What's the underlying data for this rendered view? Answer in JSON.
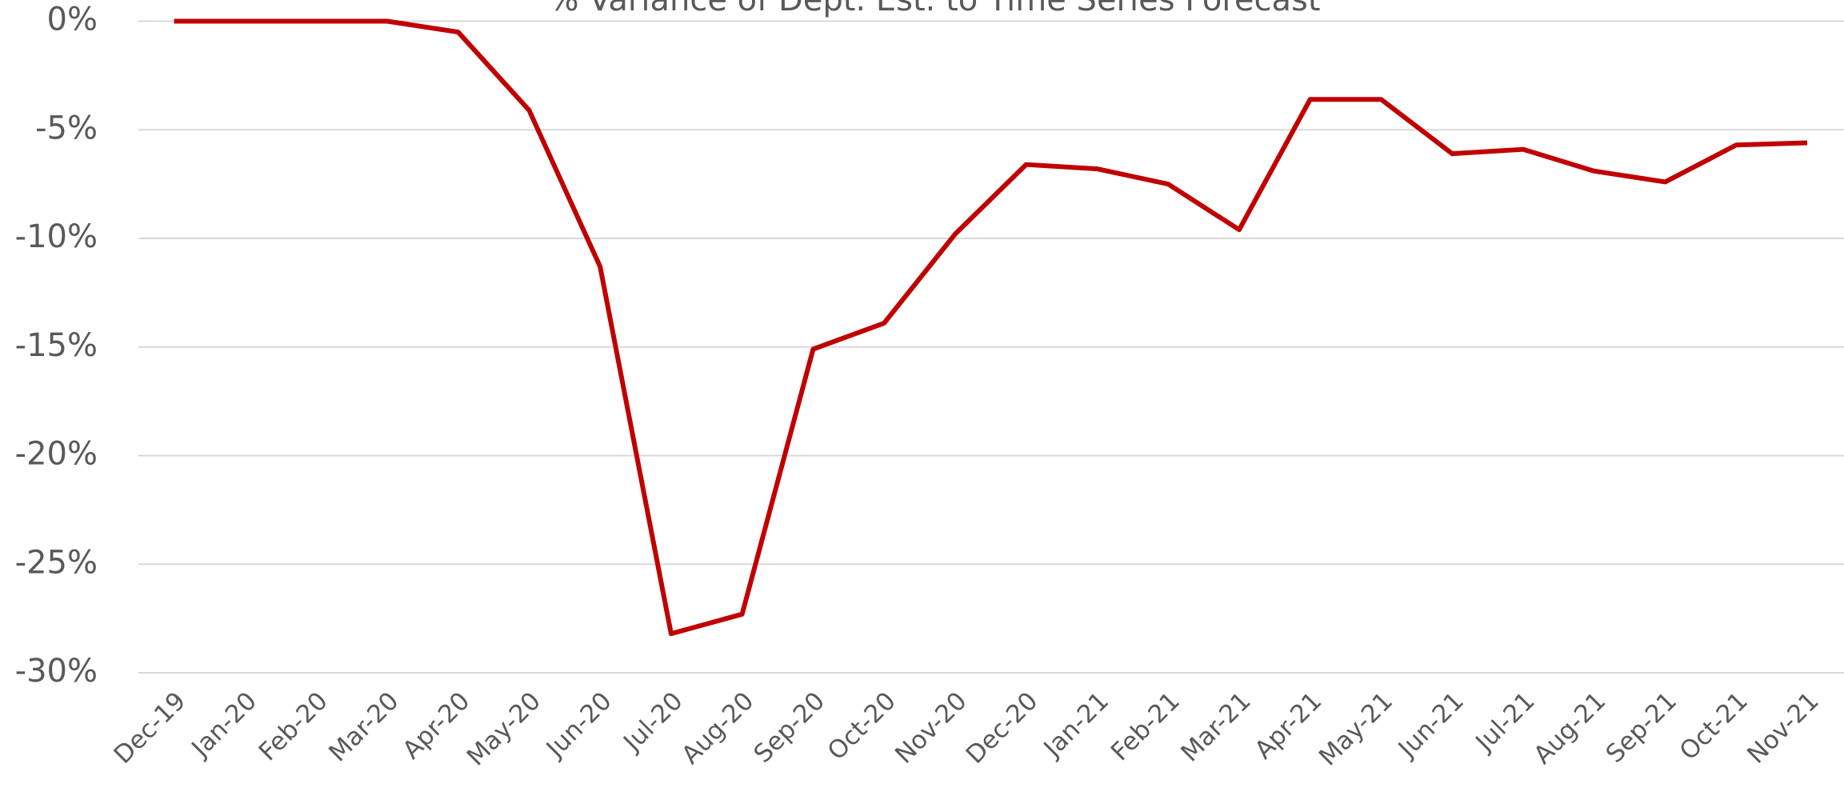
{
  "chart_data": {
    "type": "line",
    "title": "% Variance of Dept. Est. to Time Series Forecast",
    "categories": [
      "Dec-19",
      "Jan-20",
      "Feb-20",
      "Mar-20",
      "Apr-20",
      "May-20",
      "Jun-20",
      "Jul-20",
      "Aug-20",
      "Sep-20",
      "Oct-20",
      "Nov-20",
      "Dec-20",
      "Jan-21",
      "Feb-21",
      "Mar-21",
      "Apr-21",
      "May-21",
      "Jun-21",
      "Jul-21",
      "Aug-21",
      "Sep-21",
      "Oct-21",
      "Nov-21"
    ],
    "values": [
      0,
      0,
      0,
      0,
      -0.5,
      -4.1,
      -11.3,
      -28.2,
      -27.3,
      -15.1,
      -13.9,
      -9.8,
      -6.6,
      -6.8,
      -7.5,
      -9.6,
      -3.6,
      -3.6,
      -6.1,
      -5.9,
      -6.9,
      -7.4,
      -5.7,
      -5.6
    ],
    "color": "#c00000",
    "ylim": [
      -30,
      0
    ],
    "yticks": [
      {
        "value": 0,
        "label": "0%"
      },
      {
        "value": -5,
        "label": "-5%"
      },
      {
        "value": -10,
        "label": "-10%"
      },
      {
        "value": -15,
        "label": "-15%"
      },
      {
        "value": -20,
        "label": "-20%"
      },
      {
        "value": -25,
        "label": "-25%"
      },
      {
        "value": -30,
        "label": "-30%"
      }
    ],
    "grid": true
  }
}
